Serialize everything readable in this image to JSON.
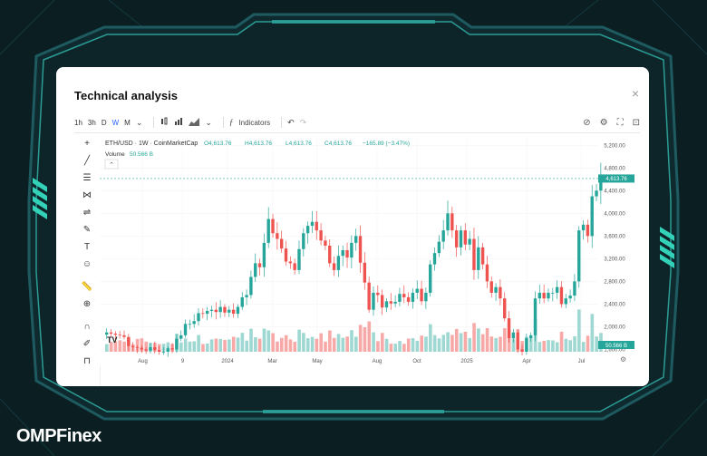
{
  "modal": {
    "title": "Technical analysis",
    "close": "×"
  },
  "toolbar": {
    "timeframes": [
      "1h",
      "3h",
      "D",
      "W",
      "M"
    ],
    "active_timeframe": "W",
    "indicators_label": "Indicators",
    "indicators_icon": "fx-icon"
  },
  "chart": {
    "header": {
      "symbol": "ETH/USD · 1W · CoinMarketCap",
      "o": "O4,613.76",
      "h": "H4,613.76",
      "l": "L4,613.76",
      "c": "C4,613.76",
      "change": "−165.89 (−3.47%)",
      "volume_label": "Volume",
      "volume_value": "50.566 B"
    },
    "price_label": "4,613.76",
    "volume_badge": "50.566 B",
    "y_ticks": [
      "5,200.00",
      "4,800.00",
      "4,400.00",
      "4,000.00",
      "3,600.00",
      "3,200.00",
      "2,800.00",
      "2,400.00",
      "2,000.00",
      "1,600.00"
    ],
    "x_ticks": [
      "Aug",
      "9",
      "2024",
      "Mar",
      "May",
      "Aug",
      "Oct",
      "2025",
      "Apr",
      "Jul"
    ],
    "tv_logo": "TV",
    "colors": {
      "up": "#26a69a",
      "down": "#ef5350",
      "up_vol": "#9fd8d2",
      "down_vol": "#f7a9a8"
    }
  },
  "chart_data": {
    "type": "candlestick",
    "title": "ETH/USD · 1W · CoinMarketCap",
    "ylim": [
      1400,
      5300
    ],
    "close_series": [
      1900,
      1880,
      1860,
      1850,
      1820,
      1660,
      1640,
      1630,
      1600,
      1580,
      1640,
      1590,
      1560,
      1560,
      1620,
      1600,
      1790,
      1850,
      2050,
      2050,
      2100,
      2240,
      2230,
      2280,
      2300,
      2260,
      2350,
      2250,
      2300,
      2230,
      2350,
      2520,
      2560,
      2880,
      3120,
      3050,
      3480,
      3900,
      3650,
      3550,
      3380,
      3150,
      3120,
      3000,
      3370,
      3650,
      3780,
      3850,
      3700,
      3520,
      3430,
      3120,
      3000,
      3250,
      3350,
      3220,
      3480,
      3600,
      3130,
      2780,
      2300,
      2600,
      2560,
      2340,
      2450,
      2410,
      2440,
      2580,
      2520,
      2440,
      2600,
      2670,
      2450,
      2600,
      3100,
      3300,
      3500,
      3700,
      4000,
      3700,
      3400,
      3700,
      3450,
      3550,
      3000,
      3400,
      3100,
      2800,
      2600,
      2700,
      2500,
      2150,
      1800,
      1900,
      1600,
      1560,
      1800,
      1850,
      2500,
      2600,
      2500,
      2600,
      2600,
      2700,
      2400,
      2500,
      2550,
      2800,
      3700,
      3800,
      3600,
      4300,
      4400,
      4613.76
    ]
  }
}
